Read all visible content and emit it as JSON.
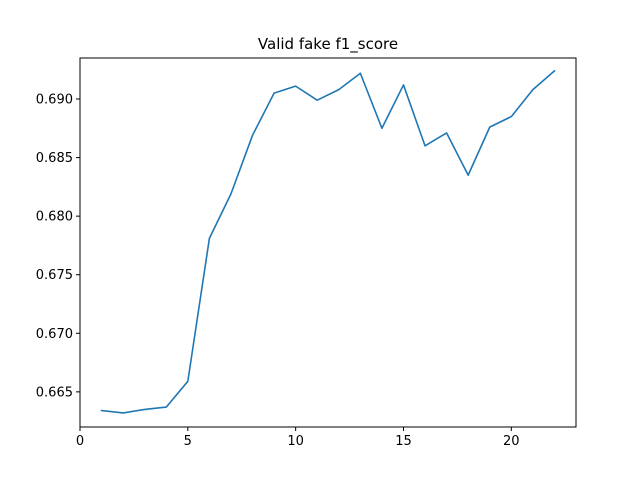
{
  "chart_data": {
    "type": "line",
    "title": "Valid fake f1_score",
    "xlabel": "",
    "ylabel": "",
    "x": [
      1,
      2,
      3,
      4,
      5,
      6,
      7,
      8,
      9,
      10,
      11,
      12,
      13,
      14,
      15,
      16,
      17,
      18,
      19,
      20,
      21,
      22
    ],
    "series": [
      {
        "name": "",
        "color": "#1f77b4",
        "values": [
          0.6634,
          0.6632,
          0.6635,
          0.6637,
          0.6659,
          0.6781,
          0.6819,
          0.6869,
          0.6905,
          0.6911,
          0.6899,
          0.6908,
          0.6922,
          0.6875,
          0.6912,
          0.686,
          0.6871,
          0.6835,
          0.6876,
          0.6885,
          0.6908,
          0.6924
        ]
      }
    ],
    "xlim": [
      0,
      23
    ],
    "ylim": [
      0.662,
      0.6935
    ],
    "xticks": [
      0,
      5,
      10,
      15,
      20
    ],
    "xtick_labels": [
      "0",
      "5",
      "10",
      "15",
      "20"
    ],
    "yticks": [
      0.665,
      0.67,
      0.675,
      0.68,
      0.685,
      0.69
    ],
    "ytick_labels": [
      "0.665",
      "0.670",
      "0.675",
      "0.680",
      "0.685",
      "0.690"
    ],
    "grid": false,
    "legend": "none"
  }
}
